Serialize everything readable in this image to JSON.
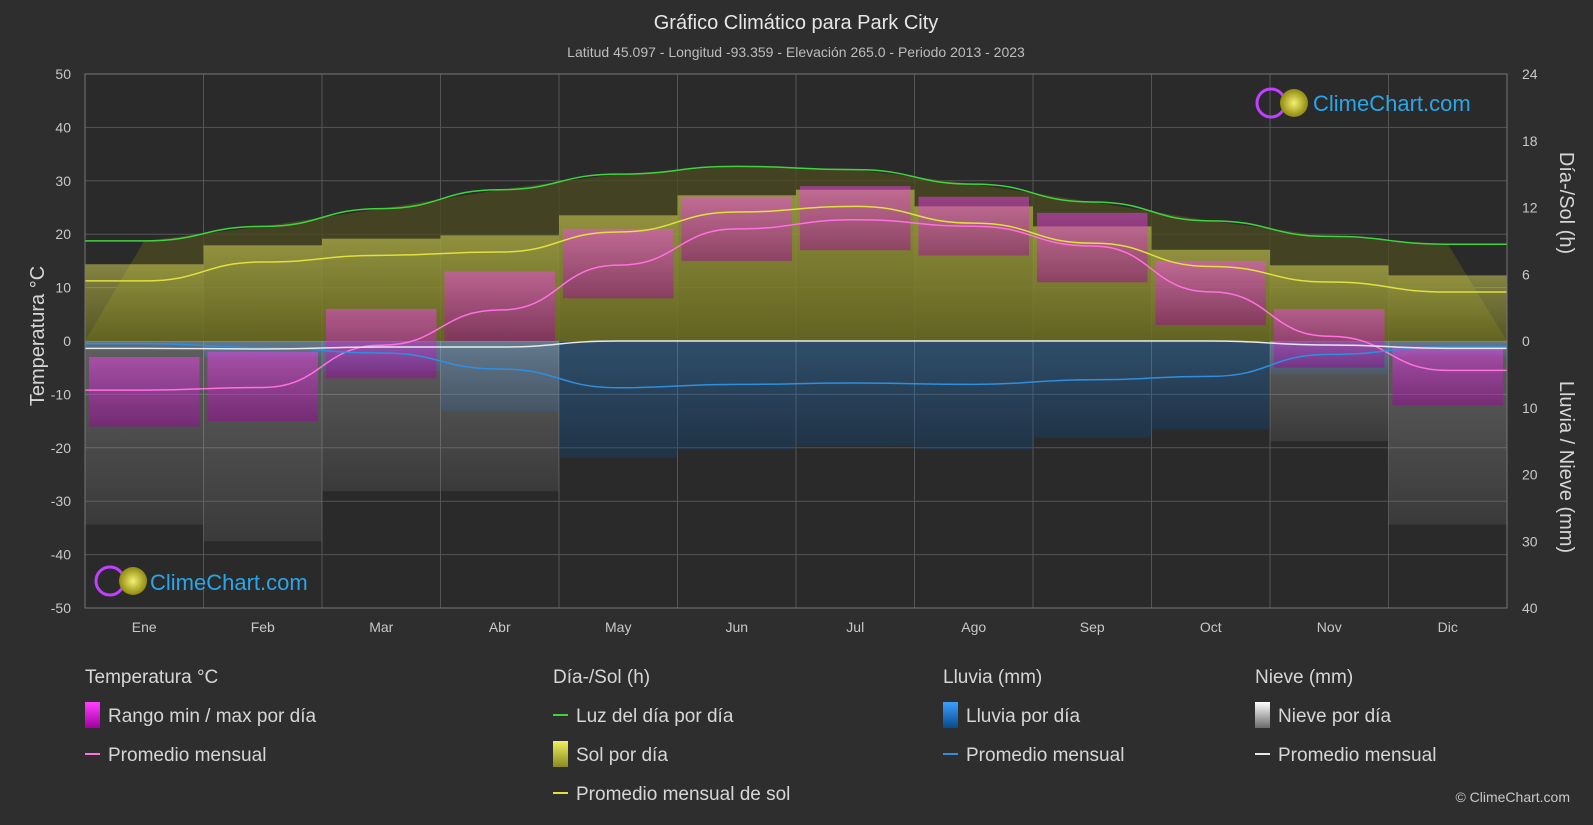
{
  "chart_data": {
    "type": "area",
    "title": "Gráfico Climático para Park City",
    "subtitle": "Latitud 45.097 - Longitud -93.359 - Elevación 265.0 - Periodo 2013 - 2023",
    "months": [
      "Ene",
      "Feb",
      "Mar",
      "Abr",
      "May",
      "Jun",
      "Jul",
      "Ago",
      "Sep",
      "Oct",
      "Nov",
      "Dic"
    ],
    "y_left": {
      "label": "Temperatura °C",
      "range": [
        -50,
        50
      ],
      "ticks": [
        "50",
        "40",
        "30",
        "20",
        "10",
        "0",
        "-10",
        "-20",
        "-30",
        "-40",
        "-50"
      ]
    },
    "y_right_top": {
      "label": "Día-/Sol (h)",
      "range": [
        0,
        24
      ],
      "ticks": [
        "24",
        "18",
        "12",
        "6",
        "0"
      ]
    },
    "y_right_bottom": {
      "label": "Lluvia / Nieve (mm)",
      "range": [
        0,
        40
      ],
      "ticks": [
        "10",
        "20",
        "30",
        "40"
      ]
    },
    "series": [
      {
        "name": "Promedio mensual",
        "group": "temperatura",
        "unit": "°C",
        "color": "#ff70e0",
        "values": [
          -9.2,
          -8.7,
          -0.8,
          5.8,
          14.2,
          21.0,
          22.7,
          21.5,
          17.8,
          9.2,
          0.9,
          -5.5
        ]
      },
      {
        "name": "Luz del día por día",
        "group": "dia_sol",
        "unit": "h",
        "color": "#3fd43f",
        "values": [
          9.0,
          10.3,
          11.9,
          13.6,
          15.0,
          15.7,
          15.4,
          14.1,
          12.5,
          10.8,
          9.4,
          8.7
        ]
      },
      {
        "name": "Promedio mensual de sol",
        "group": "dia_sol",
        "unit": "h",
        "color": "#e0e040",
        "values": [
          5.4,
          7.1,
          7.7,
          8.0,
          9.8,
          11.6,
          12.1,
          10.6,
          8.8,
          6.7,
          5.3,
          4.4
        ]
      },
      {
        "name": "Promedio mensual",
        "group": "lluvia",
        "unit": "mm",
        "color": "#2e8fe0",
        "values": [
          0.4,
          1.0,
          1.8,
          4.2,
          7.0,
          6.5,
          6.3,
          6.5,
          5.8,
          5.3,
          2.0,
          0.9
        ]
      },
      {
        "name": "Promedio mensual",
        "group": "nieve",
        "unit": "mm",
        "color": "#e8e8e8",
        "values": [
          1.1,
          1.2,
          0.9,
          0.9,
          0.0,
          0.0,
          0.0,
          0.0,
          0.0,
          0.0,
          0.6,
          1.1
        ]
      }
    ],
    "temperature_range_daily": {
      "min": [
        -16,
        -15,
        -7,
        0,
        8,
        15,
        17,
        16,
        11,
        3,
        -5,
        -12
      ],
      "max": [
        -3,
        -2,
        6,
        13,
        21,
        27,
        29,
        27,
        24,
        15,
        6,
        -1
      ]
    },
    "legend": {
      "groups": [
        {
          "head": "Temperatura °C",
          "items": [
            {
              "label": "Rango min / max por día"
            },
            {
              "label": "Promedio mensual"
            }
          ]
        },
        {
          "head": "Día-/Sol (h)",
          "items": [
            {
              "label": "Luz del día por día"
            },
            {
              "label": "Sol por día"
            },
            {
              "label": "Promedio mensual de sol"
            }
          ]
        },
        {
          "head": "Lluvia (mm)",
          "items": [
            {
              "label": "Lluvia por día"
            },
            {
              "label": "Promedio mensual"
            }
          ]
        },
        {
          "head": "Nieve (mm)",
          "items": [
            {
              "label": "Nieve por día"
            },
            {
              "label": "Promedio mensual"
            }
          ]
        }
      ]
    },
    "grid": true
  },
  "brand": {
    "name": "ClimeChart.com",
    "copyright": "© ClimeChart.com"
  }
}
